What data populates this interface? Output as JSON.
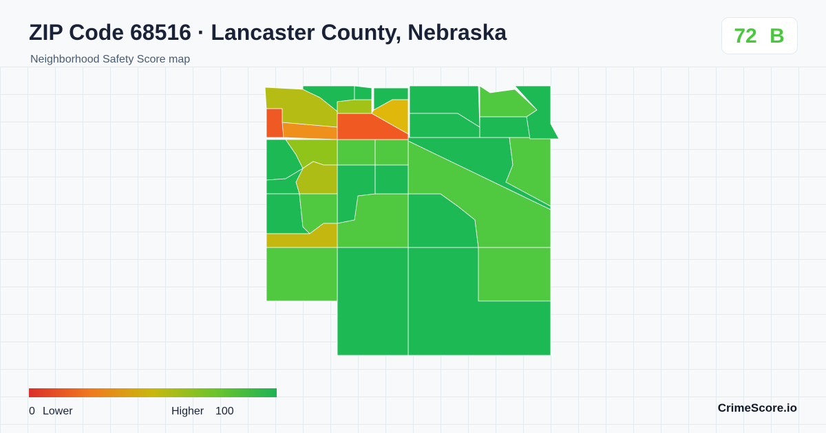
{
  "header": {
    "title": "ZIP Code 68516 · Lancaster County, Nebraska",
    "subtitle": "Neighborhood Safety Score map"
  },
  "score": {
    "value": "72",
    "grade": "B"
  },
  "legend": {
    "min": "0",
    "min_label": "Lower",
    "max_label": "Higher",
    "max": "100"
  },
  "brand": "CrimeScore.io"
}
